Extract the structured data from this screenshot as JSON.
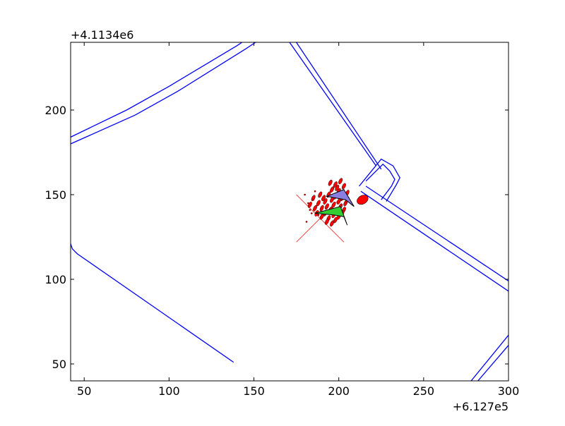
{
  "chart_data": {
    "type": "scatter",
    "title": "",
    "xlabel": "",
    "ylabel": "",
    "x_offset_label": "+6.127e5",
    "y_offset_label": "+4.1134e6",
    "xlim": [
      42,
      300
    ],
    "ylim": [
      40,
      240
    ],
    "x_ticks": [
      50,
      100,
      150,
      200,
      250,
      300
    ],
    "y_ticks": [
      50,
      100,
      150,
      200
    ],
    "x_tick_labels": [
      "50",
      "100",
      "150",
      "200",
      "250",
      "300"
    ],
    "y_tick_labels": [
      "50",
      "100",
      "150",
      "200"
    ],
    "grid": false,
    "colors": {
      "road": "#0000ff",
      "cloud": "#ff0000",
      "cross": "#ff0000",
      "green_arrow": "#33cc33",
      "purple_arrow": "#8a7fe0"
    },
    "road_lines": [
      {
        "name": "road-top-left-a",
        "points": [
          [
            42,
            184
          ],
          [
            75,
            200
          ],
          [
            100,
            214
          ],
          [
            140,
            238
          ],
          [
            143,
            240
          ]
        ]
      },
      {
        "name": "road-top-left-b",
        "points": [
          [
            42,
            180
          ],
          [
            80,
            197
          ],
          [
            105,
            211
          ],
          [
            145,
            236
          ],
          [
            151,
            240
          ]
        ]
      },
      {
        "name": "road-diagonal-a",
        "points": [
          [
            171,
            240
          ],
          [
            222,
            167
          ]
        ]
      },
      {
        "name": "road-diagonal-b",
        "points": [
          [
            175,
            240
          ],
          [
            225,
            165
          ]
        ]
      },
      {
        "name": "road-right-a",
        "points": [
          [
            216,
            155
          ],
          [
            300,
            99
          ]
        ]
      },
      {
        "name": "road-right-b",
        "points": [
          [
            213,
            152
          ],
          [
            300,
            93
          ]
        ]
      },
      {
        "name": "road-junction-a",
        "points": [
          [
            212,
            155
          ],
          [
            225,
            171
          ],
          [
            232,
            167
          ],
          [
            236,
            160
          ],
          [
            234,
            156
          ],
          [
            228,
            146
          ]
        ]
      },
      {
        "name": "road-junction-b",
        "points": [
          [
            216,
            158
          ],
          [
            226,
            168
          ],
          [
            230,
            164
          ],
          [
            233,
            159
          ],
          [
            231,
            155
          ],
          [
            225,
            147
          ]
        ]
      },
      {
        "name": "road-bottom-left",
        "points": [
          [
            42,
            121
          ],
          [
            43,
            118
          ],
          [
            46,
            115
          ],
          [
            138,
            51
          ]
        ]
      },
      {
        "name": "road-bottom-right-a",
        "points": [
          [
            278,
            40
          ],
          [
            300,
            67
          ]
        ]
      },
      {
        "name": "road-bottom-right-b",
        "points": [
          [
            282,
            40
          ],
          [
            300,
            61
          ]
        ]
      }
    ],
    "cross": {
      "center": [
        189,
        136
      ],
      "half_width": 14,
      "half_height": 14
    },
    "cloud_points": [
      [
        201,
        158
      ],
      [
        198,
        156
      ],
      [
        203,
        155
      ],
      [
        196,
        153
      ],
      [
        200,
        152
      ],
      [
        205,
        151
      ],
      [
        194,
        150
      ],
      [
        198,
        149
      ],
      [
        202,
        148
      ],
      [
        196,
        147
      ],
      [
        200,
        146
      ],
      [
        192,
        146
      ],
      [
        204,
        145
      ],
      [
        197,
        144
      ],
      [
        193,
        143
      ],
      [
        201,
        143
      ],
      [
        195,
        141
      ],
      [
        199,
        140
      ],
      [
        190,
        142
      ],
      [
        203,
        141
      ],
      [
        197,
        138
      ],
      [
        192,
        139
      ],
      [
        200,
        137
      ],
      [
        194,
        136
      ],
      [
        198,
        135
      ],
      [
        202,
        139
      ],
      [
        196,
        133
      ],
      [
        190,
        137
      ],
      [
        188,
        145
      ],
      [
        186,
        142
      ],
      [
        185,
        148
      ],
      [
        191,
        148
      ],
      [
        187,
        139
      ],
      [
        183,
        144
      ],
      [
        193,
        134
      ],
      [
        199,
        154
      ],
      [
        202,
        150
      ],
      [
        195,
        157
      ],
      [
        189,
        150
      ],
      [
        205,
        147
      ]
    ],
    "small_points": [
      [
        181,
        134
      ],
      [
        188,
        138
      ],
      [
        183,
        141
      ],
      [
        185,
        147
      ],
      [
        180,
        150
      ],
      [
        184,
        139
      ],
      [
        182,
        145
      ],
      [
        186,
        152
      ]
    ],
    "red_ellipse": {
      "center": [
        214,
        147
      ],
      "rx": 3.5,
      "ry": 2.5
    },
    "green_arrow": [
      [
        186,
        139
      ],
      [
        201,
        143
      ],
      [
        205,
        132
      ],
      [
        203,
        137
      ],
      [
        197,
        138
      ]
    ],
    "purple_arrow": [
      [
        193,
        149
      ],
      [
        203,
        153
      ],
      [
        209,
        143
      ],
      [
        204,
        147
      ]
    ]
  }
}
